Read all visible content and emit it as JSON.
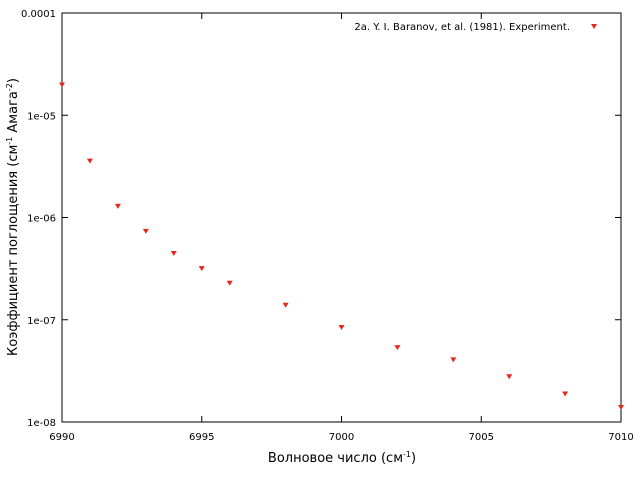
{
  "chart_data": {
    "type": "scatter",
    "xlabel": "Волновое число (см",
    "xlabel_sup": "-1",
    "xlabel_end": ")",
    "ylabel": "Коэффициент поглощения (см",
    "ylabel_sup1": "-1",
    "ylabel_mid": " Амага",
    "ylabel_sup2": "-2",
    "ylabel_end": ")",
    "xlim": [
      6990,
      7010
    ],
    "ylim": [
      1e-08,
      0.0001
    ],
    "y_scale": "log",
    "grid": false,
    "legend_position": "top-right",
    "x_ticks": [
      {
        "value": 6990,
        "label": "6990"
      },
      {
        "value": 6995,
        "label": "6995"
      },
      {
        "value": 7000,
        "label": "7000"
      },
      {
        "value": 7005,
        "label": "7005"
      },
      {
        "value": 7010,
        "label": "7010"
      }
    ],
    "y_ticks": [
      {
        "value": 1e-08,
        "label": "1e-08"
      },
      {
        "value": 1e-07,
        "label": "1e-07"
      },
      {
        "value": 1e-06,
        "label": "1e-06"
      },
      {
        "value": 1e-05,
        "label": "1e-05"
      },
      {
        "value": 0.0001,
        "label": "0.0001"
      }
    ],
    "series": [
      {
        "name": "2a. Y. I. Baranov, et al. (1981). Experiment.",
        "color": "#e8251e",
        "marker": "triangle-down",
        "points": [
          {
            "x": 6990,
            "y": 2e-05
          },
          {
            "x": 6991,
            "y": 3.6e-06
          },
          {
            "x": 6992,
            "y": 1.3e-06
          },
          {
            "x": 6993,
            "y": 7.4e-07
          },
          {
            "x": 6994,
            "y": 4.5e-07
          },
          {
            "x": 6995,
            "y": 3.2e-07
          },
          {
            "x": 6996,
            "y": 2.3e-07
          },
          {
            "x": 6998,
            "y": 1.4e-07
          },
          {
            "x": 7000,
            "y": 8.5e-08
          },
          {
            "x": 7002,
            "y": 5.4e-08
          },
          {
            "x": 7004,
            "y": 4.1e-08
          },
          {
            "x": 7006,
            "y": 2.8e-08
          },
          {
            "x": 7008,
            "y": 1.9e-08
          },
          {
            "x": 7010,
            "y": 1.4e-08
          }
        ]
      }
    ]
  }
}
